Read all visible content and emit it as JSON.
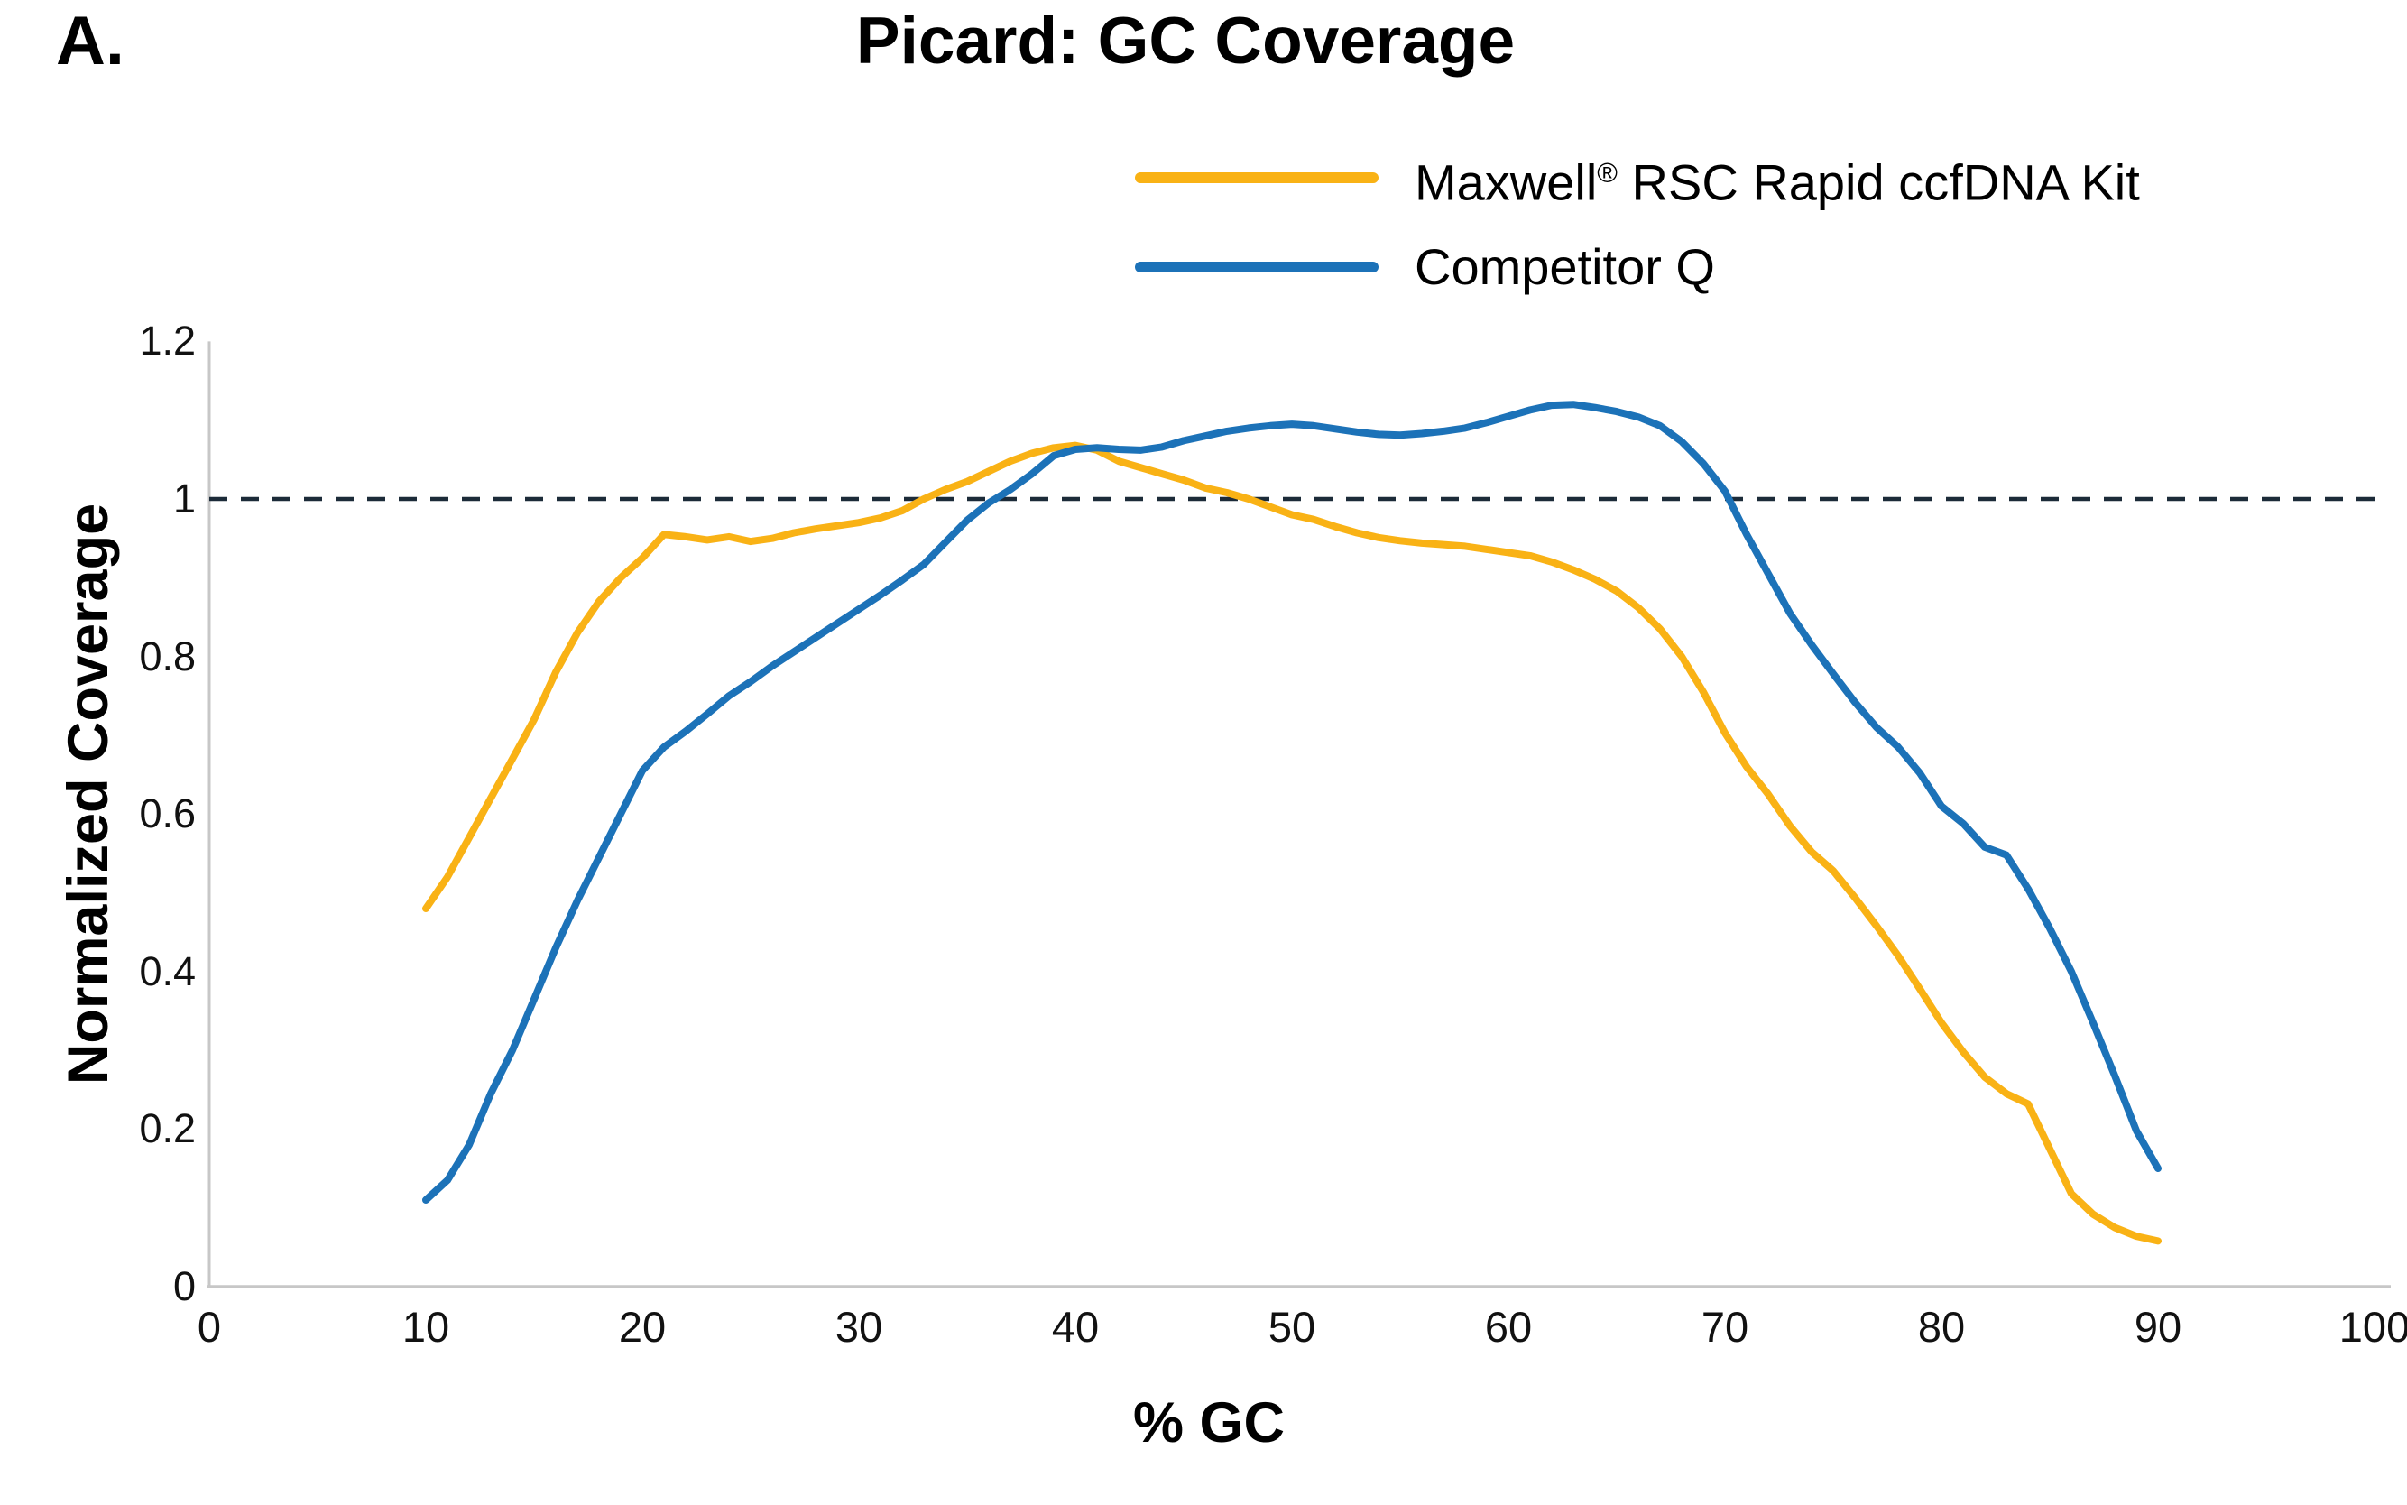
{
  "panel_label": "A.",
  "title": "Picard: GC Coverage",
  "legend": {
    "position": "top-right",
    "items": [
      {
        "pre": "Maxwell",
        "sup": "®",
        "post": " RSC Rapid ccfDNA Kit",
        "color": "#F9B215"
      },
      {
        "pre": "Competitor Q",
        "sup": "",
        "post": "",
        "color": "#1C72B8"
      }
    ]
  },
  "y_axis": {
    "title": "Normalized Coverage",
    "ticks": [
      {
        "v": 0,
        "label": "0"
      },
      {
        "v": 0.2,
        "label": "0.2"
      },
      {
        "v": 0.4,
        "label": "0.4"
      },
      {
        "v": 0.6,
        "label": "0.6"
      },
      {
        "v": 0.8,
        "label": "0.8"
      },
      {
        "v": 1,
        "label": "1"
      },
      {
        "v": 1.2,
        "label": "1.2"
      }
    ]
  },
  "x_axis": {
    "title": "% GC",
    "ticks": [
      0,
      10,
      20,
      30,
      40,
      50,
      60,
      70,
      80,
      90,
      100
    ]
  },
  "reference_line": {
    "value": 1,
    "style": "dashed",
    "color": "#1C2B39"
  },
  "colors": {
    "axis": "#C7C7C7",
    "text": "#000000",
    "background": "#FFFFFF"
  },
  "chart_data": {
    "type": "line",
    "title": "Picard: GC Coverage",
    "xlabel": "% GC",
    "ylabel": "Normalized Coverage",
    "xlim": [
      0,
      100
    ],
    "ylim": [
      0,
      1.2
    ],
    "x_ticks": [
      0,
      10,
      20,
      30,
      40,
      50,
      60,
      70,
      80,
      90,
      100
    ],
    "y_tick_labels": [
      "0",
      "0.2",
      "0.4",
      "0.6",
      "0.8",
      "1",
      "1.2"
    ],
    "grid": false,
    "legend_position": "top-right",
    "reference_line_y": 1.0,
    "x": [
      10,
      11,
      12,
      13,
      14,
      15,
      16,
      17,
      18,
      19,
      20,
      21,
      22,
      23,
      24,
      25,
      26,
      27,
      28,
      29,
      30,
      31,
      32,
      33,
      34,
      35,
      36,
      37,
      38,
      39,
      40,
      41,
      42,
      43,
      44,
      45,
      46,
      47,
      48,
      49,
      50,
      51,
      52,
      53,
      54,
      55,
      56,
      57,
      58,
      59,
      60,
      61,
      62,
      63,
      64,
      65,
      66,
      67,
      68,
      69,
      70,
      71,
      72,
      73,
      74,
      75,
      76,
      77,
      78,
      79,
      80,
      81,
      82,
      83,
      84,
      85,
      86,
      87,
      88,
      89,
      90
    ],
    "series": [
      {
        "name": "Maxwell® RSC Rapid ccfDNA Kit",
        "key": "maxwell-rsc-rapid-ccfdna-kit",
        "color": "#F9B215",
        "values": [
          0.48,
          0.52,
          0.57,
          0.62,
          0.67,
          0.72,
          0.78,
          0.83,
          0.87,
          0.9,
          0.925,
          0.955,
          0.952,
          0.948,
          0.952,
          0.946,
          0.95,
          0.957,
          0.962,
          0.966,
          0.97,
          0.976,
          0.985,
          1.0,
          1.012,
          1.022,
          1.035,
          1.048,
          1.058,
          1.065,
          1.068,
          1.062,
          1.048,
          1.04,
          1.032,
          1.024,
          1.014,
          1.008,
          1.0,
          0.99,
          0.98,
          0.974,
          0.965,
          0.957,
          0.951,
          0.947,
          0.944,
          0.942,
          0.94,
          0.936,
          0.932,
          0.928,
          0.92,
          0.91,
          0.898,
          0.883,
          0.862,
          0.835,
          0.8,
          0.755,
          0.703,
          0.66,
          0.625,
          0.585,
          0.552,
          0.528,
          0.494,
          0.458,
          0.42,
          0.378,
          0.335,
          0.298,
          0.266,
          0.245,
          0.232,
          0.175,
          0.118,
          0.092,
          0.075,
          0.064,
          0.058
        ]
      },
      {
        "name": "Competitor Q",
        "key": "competitor-q",
        "color": "#1C72B8",
        "values": [
          0.11,
          0.135,
          0.18,
          0.245,
          0.3,
          0.365,
          0.43,
          0.49,
          0.545,
          0.6,
          0.655,
          0.685,
          0.705,
          0.727,
          0.75,
          0.768,
          0.788,
          0.806,
          0.824,
          0.842,
          0.86,
          0.878,
          0.897,
          0.917,
          0.945,
          0.973,
          0.995,
          1.012,
          1.032,
          1.055,
          1.063,
          1.065,
          1.063,
          1.062,
          1.066,
          1.074,
          1.08,
          1.086,
          1.09,
          1.093,
          1.095,
          1.093,
          1.089,
          1.085,
          1.082,
          1.081,
          1.083,
          1.086,
          1.09,
          1.097,
          1.105,
          1.113,
          1.119,
          1.12,
          1.116,
          1.111,
          1.104,
          1.093,
          1.073,
          1.045,
          1.01,
          0.955,
          0.905,
          0.855,
          0.815,
          0.778,
          0.742,
          0.71,
          0.685,
          0.652,
          0.61,
          0.588,
          0.558,
          0.548,
          0.505,
          0.455,
          0.4,
          0.335,
          0.268,
          0.198,
          0.15
        ]
      }
    ]
  }
}
